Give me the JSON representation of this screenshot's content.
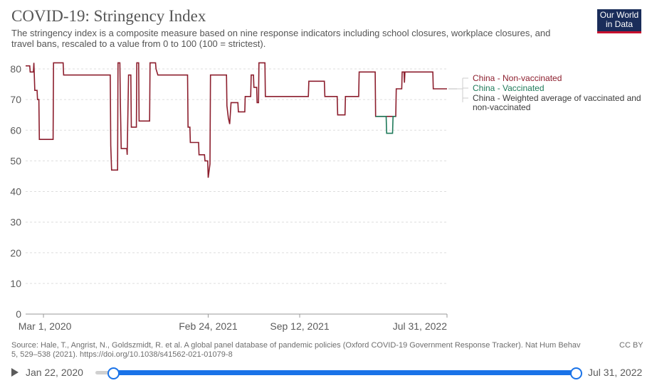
{
  "header": {
    "title": "COVID-19: Stringency Index",
    "subtitle": "The stringency index is a composite measure based on nine response indicators including school closures, workplace closures, and travel bans, rescaled to a value from 0 to 100 (100 = strictest).",
    "logo_line1": "Our World",
    "logo_line2": "in Data"
  },
  "footer": {
    "source": "Source: Hale, T., Angrist, N., Goldszmidt, R. et al. A global panel database of pandemic policies (Oxford COVID-19 Government Response Tracker). Nat Hum Behav 5, 529–538 (2021). https://doi.org/10.1038/s41562-021-01079-8",
    "license": "CC BY"
  },
  "timeline": {
    "start_label": "Jan 22, 2020",
    "end_label": "Jul 31, 2022",
    "start_position": 0.04,
    "end_position": 1.0
  },
  "colors": {
    "non_vaccinated": "#8c1e2d",
    "vaccinated": "#1f7a5a",
    "weighted": "#3c3c3c",
    "grid": "#dddddd",
    "axis": "#999999",
    "text": "#5b5b5b"
  },
  "chart_data": {
    "type": "line",
    "title": "COVID-19: Stringency Index",
    "xlabel": "",
    "ylabel": "",
    "x_domain": [
      "2020-01-22",
      "2022-07-31"
    ],
    "ylim": [
      0,
      80
    ],
    "y_ticks": [
      0,
      10,
      20,
      30,
      40,
      50,
      60,
      70,
      80
    ],
    "x_ticks": [
      {
        "date": "2020-03-01",
        "label": "Mar 1, 2020"
      },
      {
        "date": "2021-02-24",
        "label": "Feb 24, 2021"
      },
      {
        "date": "2021-09-12",
        "label": "Sep 12, 2021"
      },
      {
        "date": "2022-07-31",
        "label": "Jul 31, 2022"
      }
    ],
    "grid": true,
    "legend_position": "right",
    "series": [
      {
        "name": "China - Non-vaccinated",
        "color": "#8c1e2d",
        "points": [
          [
            "2020-01-22",
            81
          ],
          [
            "2020-01-31",
            81
          ],
          [
            "2020-02-01",
            79
          ],
          [
            "2020-02-08",
            79
          ],
          [
            "2020-02-09",
            82
          ],
          [
            "2020-02-11",
            73
          ],
          [
            "2020-02-16",
            73
          ],
          [
            "2020-02-17",
            70
          ],
          [
            "2020-02-20",
            70
          ],
          [
            "2020-02-21",
            57
          ],
          [
            "2020-03-01",
            57
          ],
          [
            "2020-03-22",
            57
          ],
          [
            "2020-03-23",
            82
          ],
          [
            "2020-04-13",
            82
          ],
          [
            "2020-04-14",
            78
          ],
          [
            "2020-07-25",
            78
          ],
          [
            "2020-07-26",
            55
          ],
          [
            "2020-07-28",
            47
          ],
          [
            "2020-08-10",
            47
          ],
          [
            "2020-08-11",
            82
          ],
          [
            "2020-08-15",
            82
          ],
          [
            "2020-08-16",
            69
          ],
          [
            "2020-08-18",
            54
          ],
          [
            "2020-08-30",
            54
          ],
          [
            "2020-08-31",
            52
          ],
          [
            "2020-09-03",
            78
          ],
          [
            "2020-09-08",
            78
          ],
          [
            "2020-09-09",
            61
          ],
          [
            "2020-09-20",
            61
          ],
          [
            "2020-09-21",
            82
          ],
          [
            "2020-09-25",
            82
          ],
          [
            "2020-09-26",
            63
          ],
          [
            "2020-10-19",
            63
          ],
          [
            "2020-10-20",
            82
          ],
          [
            "2020-11-01",
            82
          ],
          [
            "2020-11-02",
            80
          ],
          [
            "2020-11-06",
            78
          ],
          [
            "2021-01-10",
            78
          ],
          [
            "2021-01-11",
            61
          ],
          [
            "2021-01-15",
            61
          ],
          [
            "2021-01-16",
            56
          ],
          [
            "2021-02-03",
            56
          ],
          [
            "2021-02-04",
            52
          ],
          [
            "2021-02-16",
            52
          ],
          [
            "2021-02-17",
            50
          ],
          [
            "2021-02-23",
            50
          ],
          [
            "2021-02-24",
            44.5
          ],
          [
            "2021-02-28",
            49
          ],
          [
            "2021-03-01",
            78
          ],
          [
            "2021-04-05",
            78
          ],
          [
            "2021-04-06",
            68
          ],
          [
            "2021-04-09",
            64
          ],
          [
            "2021-04-12",
            62
          ],
          [
            "2021-04-15",
            69
          ],
          [
            "2021-04-30",
            69
          ],
          [
            "2021-05-01",
            66
          ],
          [
            "2021-05-15",
            66
          ],
          [
            "2021-05-16",
            71
          ],
          [
            "2021-05-28",
            71
          ],
          [
            "2021-05-29",
            78
          ],
          [
            "2021-06-03",
            78
          ],
          [
            "2021-06-04",
            74
          ],
          [
            "2021-06-10",
            74
          ],
          [
            "2021-06-11",
            69
          ],
          [
            "2021-06-14",
            69
          ],
          [
            "2021-06-15",
            82
          ],
          [
            "2021-06-28",
            82
          ],
          [
            "2021-06-29",
            71
          ],
          [
            "2021-10-01",
            71
          ],
          [
            "2021-10-02",
            76
          ],
          [
            "2021-11-05",
            76
          ],
          [
            "2021-11-06",
            71
          ],
          [
            "2021-12-03",
            71
          ],
          [
            "2021-12-04",
            65
          ],
          [
            "2021-12-20",
            65
          ],
          [
            "2021-12-21",
            71
          ],
          [
            "2022-01-19",
            71
          ],
          [
            "2022-01-20",
            79
          ],
          [
            "2022-02-24",
            79
          ],
          [
            "2022-02-25",
            64.5
          ],
          [
            "2022-04-10",
            64.5
          ],
          [
            "2022-04-11",
            73.5
          ],
          [
            "2022-04-23",
            73.5
          ],
          [
            "2022-04-24",
            79
          ],
          [
            "2022-04-28",
            79
          ],
          [
            "2022-04-29",
            75.5
          ],
          [
            "2022-04-30",
            79
          ],
          [
            "2022-06-30",
            79
          ],
          [
            "2022-07-01",
            73.5
          ],
          [
            "2022-07-31",
            73.5
          ]
        ]
      },
      {
        "name": "China - Vaccinated",
        "color": "#1f7a5a",
        "points": [
          [
            "2022-02-25",
            64.5
          ],
          [
            "2022-03-20",
            64.5
          ],
          [
            "2022-03-21",
            59
          ],
          [
            "2022-04-03",
            59
          ],
          [
            "2022-04-04",
            64.5
          ],
          [
            "2022-04-10",
            64.5
          ]
        ]
      },
      {
        "name": "China - Weighted average of vaccinated and non-vaccinated",
        "color": "#3c3c3c",
        "points": []
      }
    ]
  }
}
